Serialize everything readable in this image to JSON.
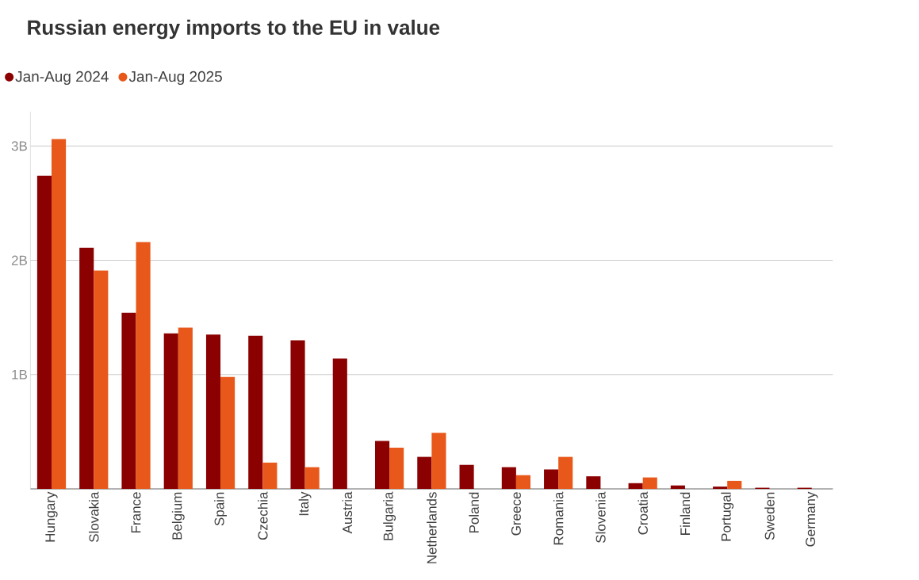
{
  "chart_data": {
    "type": "bar",
    "title": "Russian energy imports to the EU in value",
    "categories": [
      "Hungary",
      "Slovakia",
      "France",
      "Belgium",
      "Spain",
      "Czechia",
      "Italy",
      "Austria",
      "Bulgaria",
      "Netherlands",
      "Poland",
      "Greece",
      "Romania",
      "Slovenia",
      "Croatia",
      "Finland",
      "Portugal",
      "Sweden",
      "Germany"
    ],
    "series": [
      {
        "name": "Jan-Aug 2024",
        "color": "#8b0000",
        "values": [
          2.74,
          2.11,
          1.54,
          1.36,
          1.35,
          1.34,
          1.3,
          1.14,
          0.42,
          0.28,
          0.21,
          0.19,
          0.17,
          0.11,
          0.05,
          0.03,
          0.02,
          0.01,
          0.01
        ]
      },
      {
        "name": "Jan-Aug 2025",
        "color": "#e8581a",
        "values": [
          3.06,
          1.91,
          2.16,
          1.41,
          0.98,
          0.23,
          0.19,
          0,
          0.36,
          0.49,
          0,
          0.12,
          0.28,
          0,
          0.1,
          0,
          0.07,
          0,
          0
        ]
      }
    ],
    "yticks": [
      {
        "value": 0,
        "label": null
      },
      {
        "value": 1,
        "label": "1B"
      },
      {
        "value": 2,
        "label": "2B"
      },
      {
        "value": 3,
        "label": "3B"
      }
    ],
    "ylim": [
      0,
      3.3
    ],
    "grid": "y",
    "legend": "top left"
  }
}
